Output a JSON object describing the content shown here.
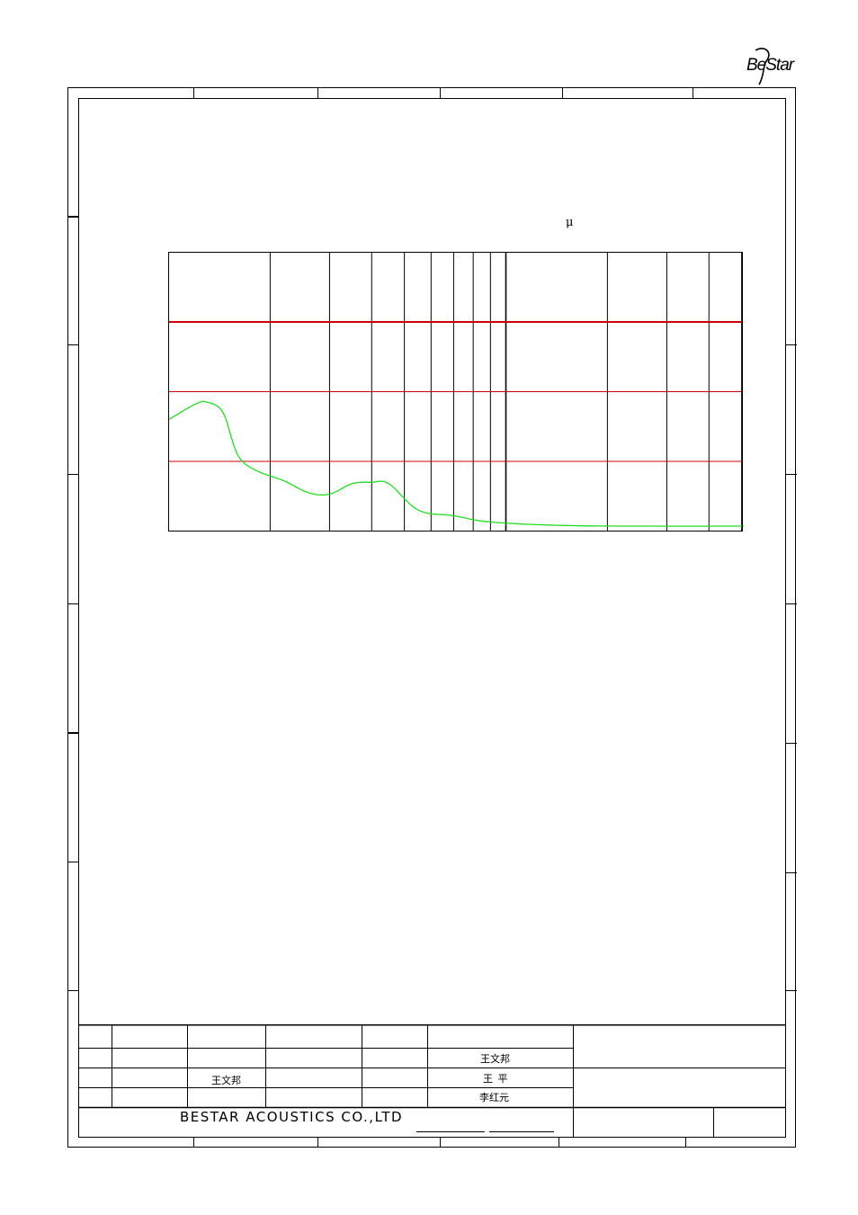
{
  "logo": {
    "text": "BeStar"
  },
  "chart_data": {
    "type": "line",
    "title": "",
    "xlabel": "",
    "ylabel": "",
    "unit_symbol": "μ",
    "x_scale": "log",
    "x_decades": 2,
    "y_divisions": 4,
    "y_scale": [
      0,
      4
    ],
    "reference_lines": [
      {
        "y": 3,
        "color": "#cc0000",
        "weight": "heavy"
      },
      {
        "y": 2,
        "color": "#cc0000",
        "weight": "light"
      },
      {
        "y": 1,
        "color": "#cc0000",
        "weight": "light"
      }
    ],
    "series": [
      {
        "color": "#22dd22",
        "x": [
          1,
          1.2,
          1.3,
          1.45,
          1.6,
          1.8,
          2.2,
          2.6,
          3.0,
          3.5,
          4.0,
          4.5,
          5.5,
          7,
          9,
          15,
          30,
          100,
          150,
          300
        ],
        "y": [
          1.6,
          1.82,
          1.85,
          1.7,
          1.1,
          0.88,
          0.72,
          0.55,
          0.53,
          0.68,
          0.7,
          0.68,
          0.3,
          0.22,
          0.13,
          0.08,
          0.07,
          0.07,
          0.03,
          0.03
        ]
      }
    ]
  },
  "title_block": {
    "signatures": {
      "row1": "王文邦",
      "row2_left": "王文邦",
      "row2_right": "王  平",
      "row3": "李红元"
    },
    "company": "BESTAR ACOUSTICS CO.,LTD"
  }
}
